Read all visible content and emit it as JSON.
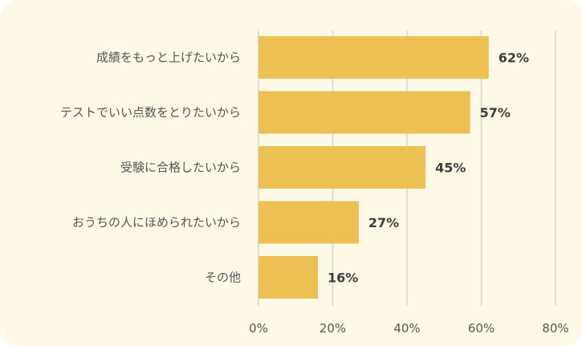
{
  "chart_data": {
    "type": "bar",
    "orientation": "horizontal",
    "categories": [
      "成績をもっと上げたいから",
      "テストでいい点数をとりたいから",
      "受験に合格したいから",
      "おうちの人にほめられたいから",
      "その他"
    ],
    "values": [
      62,
      57,
      45,
      27,
      16
    ],
    "data_labels": [
      "62%",
      "57%",
      "45%",
      "27%",
      "16%"
    ],
    "xlim": [
      0,
      80
    ],
    "x_ticks": [
      0,
      20,
      40,
      60,
      80
    ],
    "x_tick_labels": [
      "0%",
      "20%",
      "40%",
      "60%",
      "80%"
    ],
    "grid": true,
    "bar_color": "#ecc052",
    "background_color": "#fdf9e6"
  }
}
